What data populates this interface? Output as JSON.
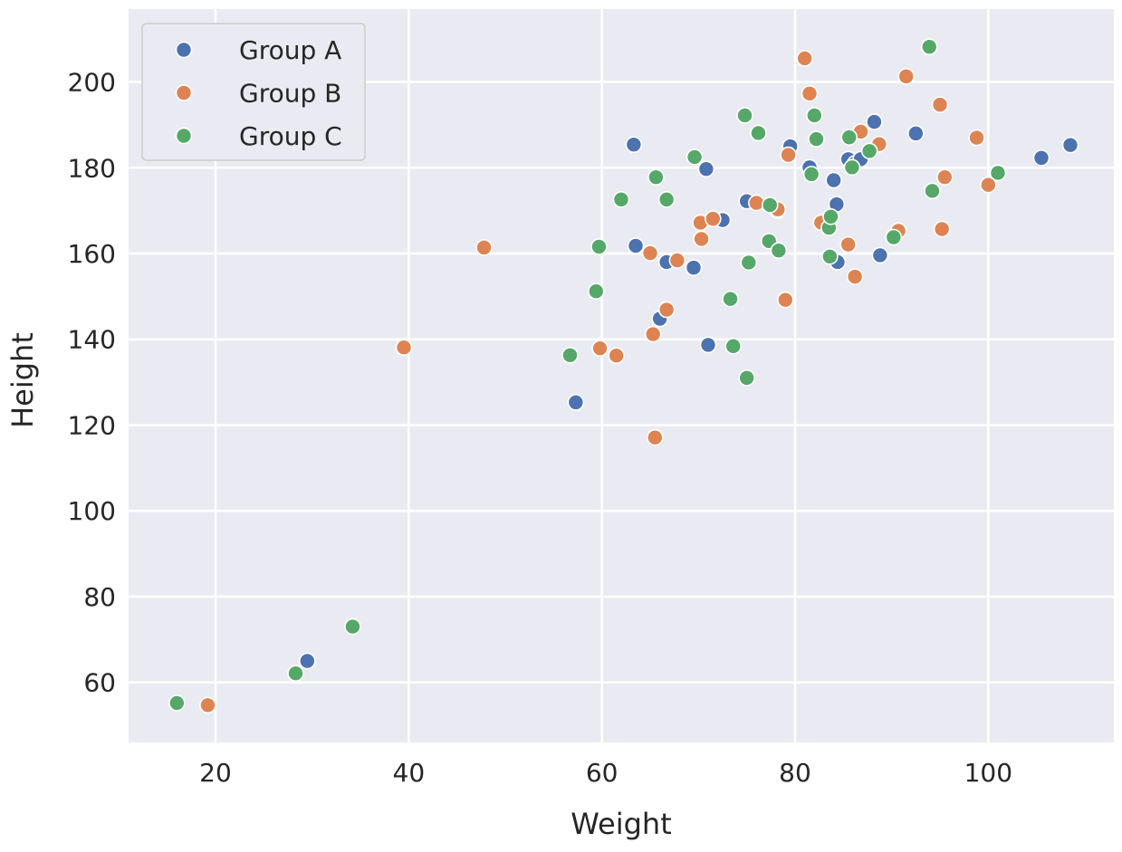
{
  "chart_data": {
    "type": "scatter",
    "xlabel": "Weight",
    "ylabel": "Height",
    "xlim": [
      11,
      113
    ],
    "ylim": [
      46,
      217
    ],
    "xticks": [
      20,
      40,
      60,
      80,
      100
    ],
    "yticks": [
      60,
      80,
      100,
      120,
      140,
      160,
      180,
      200
    ],
    "grid": true,
    "legend_position": "top-left",
    "colors": {
      "background": "#eaeaf2",
      "grid": "#ffffff"
    },
    "series": [
      {
        "name": "Group A",
        "color": "#4c72b0",
        "points": [
          [
            29.5,
            65
          ],
          [
            57.3,
            125.3
          ],
          [
            63.3,
            185.4
          ],
          [
            63.5,
            161.8
          ],
          [
            66,
            144.8
          ],
          [
            66.7,
            158
          ],
          [
            69.5,
            156.7
          ],
          [
            70.8,
            179.7
          ],
          [
            71,
            138.7
          ],
          [
            72.5,
            167.8
          ],
          [
            75,
            172.2
          ],
          [
            78.2,
            170
          ],
          [
            79.5,
            185
          ],
          [
            81.5,
            180.1
          ],
          [
            84,
            177.1
          ],
          [
            84.3,
            171.5
          ],
          [
            84.4,
            158
          ],
          [
            85.5,
            182
          ],
          [
            86.2,
            181
          ],
          [
            86.8,
            182
          ],
          [
            88.2,
            190.7
          ],
          [
            88.8,
            159.6
          ],
          [
            92.5,
            188
          ],
          [
            105.5,
            182.3
          ],
          [
            108.5,
            185.3
          ]
        ]
      },
      {
        "name": "Group B",
        "color": "#dd8452",
        "points": [
          [
            19.2,
            54.7
          ],
          [
            39.5,
            138.1
          ],
          [
            47.8,
            161.4
          ],
          [
            59.8,
            137.9
          ],
          [
            61.5,
            136.2
          ],
          [
            65,
            160.1
          ],
          [
            65.3,
            141.2
          ],
          [
            65.5,
            117.1
          ],
          [
            66.7,
            146.9
          ],
          [
            67.8,
            158.4
          ],
          [
            70.2,
            167.2
          ],
          [
            70.3,
            163.4
          ],
          [
            71.5,
            168.1
          ],
          [
            76,
            171.8
          ],
          [
            78.2,
            170.3
          ],
          [
            79,
            149.2
          ],
          [
            79.3,
            183
          ],
          [
            81,
            205.5
          ],
          [
            81.5,
            197.3
          ],
          [
            82.7,
            167.2
          ],
          [
            85.5,
            162.1
          ],
          [
            86.2,
            154.6
          ],
          [
            86.8,
            188.4
          ],
          [
            88.7,
            185.5
          ],
          [
            90.7,
            165.3
          ],
          [
            91.5,
            201.3
          ],
          [
            95,
            194.7
          ],
          [
            95.2,
            165.7
          ],
          [
            95.5,
            177.8
          ],
          [
            98.8,
            187
          ],
          [
            100,
            176
          ]
        ]
      },
      {
        "name": "Group C",
        "color": "#55a868",
        "points": [
          [
            16,
            55.2
          ],
          [
            28.3,
            62.1
          ],
          [
            34.2,
            73
          ],
          [
            56.7,
            136.3
          ],
          [
            59.4,
            151.2
          ],
          [
            59.7,
            161.6
          ],
          [
            62,
            172.6
          ],
          [
            65.6,
            177.8
          ],
          [
            66.7,
            172.6
          ],
          [
            69.6,
            182.5
          ],
          [
            73.3,
            149.4
          ],
          [
            73.6,
            138.4
          ],
          [
            74.8,
            192.2
          ],
          [
            75,
            131
          ],
          [
            75.2,
            157.9
          ],
          [
            76.2,
            188.1
          ],
          [
            77.3,
            162.9
          ],
          [
            77.4,
            171.3
          ],
          [
            78.3,
            160.7
          ],
          [
            81.7,
            178.5
          ],
          [
            82,
            192.2
          ],
          [
            82.2,
            186.7
          ],
          [
            83.5,
            166
          ],
          [
            83.6,
            159.3
          ],
          [
            83.7,
            168.6
          ],
          [
            85.6,
            187.1
          ],
          [
            85.9,
            180.1
          ],
          [
            87.7,
            183.9
          ],
          [
            90.2,
            163.8
          ],
          [
            93.9,
            208.2
          ],
          [
            94.2,
            174.6
          ],
          [
            101,
            178.8
          ]
        ]
      }
    ]
  }
}
